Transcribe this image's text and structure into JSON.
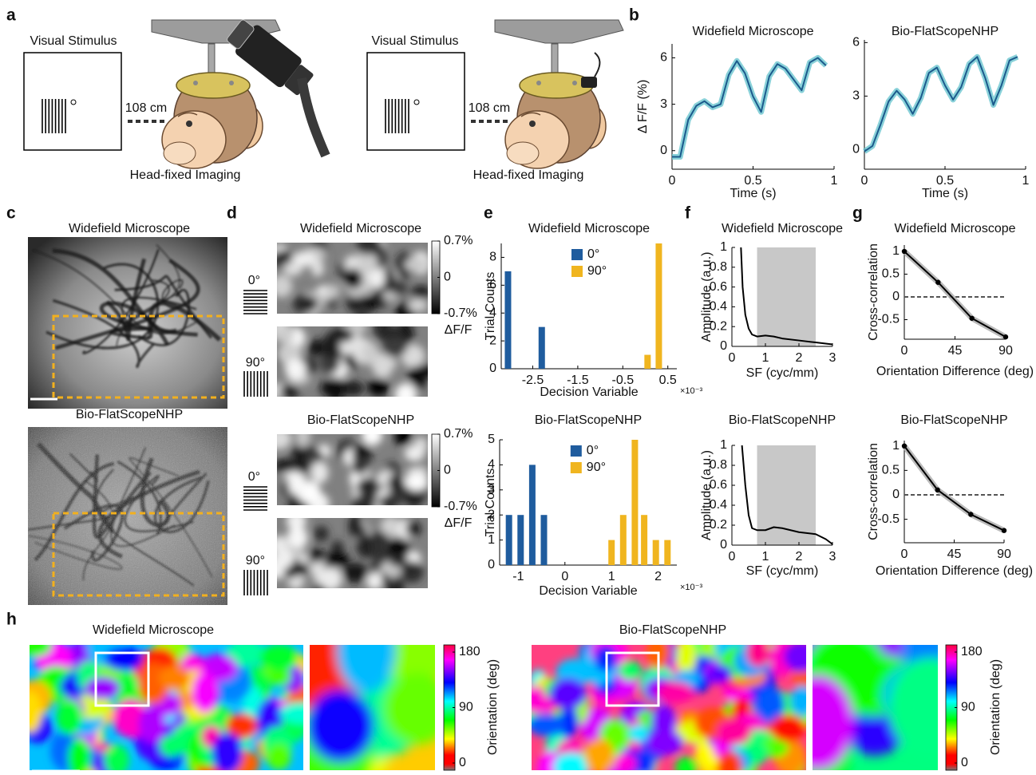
{
  "panel_labels": [
    "a",
    "b",
    "c",
    "d",
    "e",
    "f",
    "g",
    "h"
  ],
  "setup": [
    {
      "stimulus": "Visual Stimulus",
      "distance": "108 cm",
      "caption": "Head-fixed Imaging"
    },
    {
      "stimulus": "Visual Stimulus",
      "distance": "108 cm",
      "caption": "Head-fixed Imaging"
    }
  ],
  "panel_c": {
    "titles": [
      "Widefield Microscope",
      "Bio-FlatScopeNHP"
    ]
  },
  "panel_d": {
    "titles": [
      "Widefield Microscope",
      "Bio-FlatScopeNHP"
    ],
    "orientations": [
      "0°",
      "90°"
    ],
    "colorbar": {
      "ticks": [
        {
          "value": 0.7,
          "label": "0.7%"
        },
        0,
        {
          "value": -0.7,
          "label": "-0.7%"
        }
      ],
      "label": "ΔF/F"
    }
  },
  "panel_h": {
    "titles": [
      "Widefield Microscope",
      "Bio-FlatScopeNHP"
    ],
    "colorbar": {
      "ticks": [
        0,
        90,
        180
      ],
      "label": "Orientation (deg)"
    }
  },
  "chart_data": [
    {
      "type": "line",
      "title": "Widefield Microscope",
      "xlabel": "Time (s)",
      "ylabel": "Δ F/F (%)",
      "xlim": [
        0,
        1
      ],
      "ylim": [
        -1.2,
        6.9
      ],
      "xticks": [
        0,
        0.5,
        1
      ],
      "yticks": [
        0,
        3,
        6
      ],
      "band_color": "#6cc6cf",
      "series": [
        {
          "color": "#1b5a8c",
          "x": [
            0,
            0.05,
            0.1,
            0.15,
            0.2,
            0.25,
            0.3,
            0.35,
            0.4,
            0.45,
            0.5,
            0.55,
            0.6,
            0.65,
            0.7,
            0.75,
            0.8,
            0.85,
            0.9,
            0.95
          ],
          "values": [
            -0.4,
            -0.4,
            2.0,
            2.9,
            3.2,
            2.8,
            3.0,
            4.9,
            5.8,
            5.0,
            3.5,
            2.5,
            4.8,
            5.6,
            5.3,
            4.6,
            3.9,
            5.7,
            6.0,
            5.5
          ]
        }
      ]
    },
    {
      "type": "line",
      "title": "Bio-FlatScopeNHP",
      "xlabel": "Time (s)",
      "xlim": [
        0,
        1
      ],
      "ylim": [
        -1.1,
        6.15
      ],
      "xticks": [
        0,
        0.5,
        1
      ],
      "yticks": [
        0,
        3,
        6
      ],
      "band_color": "#6cc6cf",
      "series": [
        {
          "color": "#1b5a8c",
          "x": [
            0,
            0.05,
            0.1,
            0.15,
            0.2,
            0.25,
            0.3,
            0.35,
            0.4,
            0.45,
            0.5,
            0.55,
            0.6,
            0.65,
            0.7,
            0.75,
            0.8,
            0.85,
            0.9,
            0.95
          ],
          "values": [
            -0.1,
            0.2,
            1.4,
            2.7,
            3.3,
            2.8,
            2.0,
            2.9,
            4.3,
            4.6,
            3.6,
            2.8,
            3.5,
            4.8,
            5.2,
            4.0,
            2.5,
            3.6,
            5.0,
            5.2
          ]
        }
      ]
    },
    {
      "type": "bar",
      "title": "Widefield Microscope",
      "xlabel": "Decision Variable",
      "axis_exponent": "×10⁻³",
      "ylabel": "Trial Counts",
      "xlim": [
        -3.2,
        0.7
      ],
      "ylim": [
        0,
        9
      ],
      "xticks": [
        -2.5,
        -1.5,
        -0.5,
        0.5
      ],
      "yticks": [
        0,
        2,
        4,
        6,
        8
      ],
      "legend": "upper center",
      "series": [
        {
          "name": "0°",
          "color": "#1f5c9e",
          "x": [
            -3.05,
            -2.3
          ],
          "values": [
            7,
            3
          ]
        },
        {
          "name": "90°",
          "color": "#f0b51f",
          "x": [
            0.05,
            0.3
          ],
          "values": [
            1,
            9
          ]
        }
      ]
    },
    {
      "type": "bar",
      "title": "Bio-FlatScopeNHP",
      "xlabel": "Decision Variable",
      "axis_exponent": "×10⁻³",
      "ylabel": "Trial Counts",
      "xlim": [
        -1.4,
        2.4
      ],
      "ylim": [
        0,
        5
      ],
      "xticks": [
        -1,
        0,
        1,
        2
      ],
      "yticks": [
        0,
        1,
        2,
        3,
        4,
        5
      ],
      "legend": "upper center",
      "series": [
        {
          "name": "0°",
          "color": "#1f5c9e",
          "x": [
            -1.2,
            -0.95,
            -0.7,
            -0.45
          ],
          "values": [
            2,
            2,
            4,
            2
          ]
        },
        {
          "name": "90°",
          "color": "#f0b51f",
          "x": [
            1.0,
            1.25,
            1.5,
            1.7,
            1.95,
            2.2
          ],
          "values": [
            1,
            2,
            5,
            2,
            1,
            1
          ]
        }
      ]
    },
    {
      "type": "line",
      "title": "Widefield Microscope",
      "xlabel": "SF (cyc/mm)",
      "ylabel": "Amplitude (a.u.)",
      "xlim": [
        0,
        3
      ],
      "ylim": [
        0,
        1
      ],
      "xticks": [
        0,
        1,
        2,
        3
      ],
      "yticks": [
        0,
        0.2,
        0.4,
        0.6,
        0.8,
        1
      ],
      "shaded_range": [
        0.75,
        2.5
      ],
      "series": [
        {
          "color": "#000000",
          "x": [
            0.27,
            0.32,
            0.4,
            0.5,
            0.6,
            0.75,
            1,
            1.25,
            1.5,
            2,
            2.5,
            3
          ],
          "values": [
            1,
            0.6,
            0.32,
            0.18,
            0.12,
            0.1,
            0.11,
            0.1,
            0.08,
            0.06,
            0.04,
            0.02
          ]
        }
      ]
    },
    {
      "type": "line",
      "title": "Bio-FlatScopeNHP",
      "xlabel": "SF (cyc/mm)",
      "ylabel": "Amplitude (a.u.)",
      "xlim": [
        0,
        3
      ],
      "ylim": [
        0,
        1
      ],
      "xticks": [
        0,
        1,
        2,
        3
      ],
      "yticks": [
        0,
        0.2,
        0.4,
        0.6,
        0.8,
        1
      ],
      "shaded_range": [
        0.75,
        2.5
      ],
      "series": [
        {
          "color": "#000000",
          "x": [
            0.3,
            0.4,
            0.5,
            0.6,
            0.75,
            1,
            1.25,
            1.5,
            2,
            2.5,
            2.8,
            3
          ],
          "values": [
            1,
            0.6,
            0.3,
            0.17,
            0.15,
            0.15,
            0.18,
            0.17,
            0.13,
            0.11,
            0.06,
            0.01
          ]
        }
      ]
    },
    {
      "type": "line",
      "title": "Widefield Microscope",
      "xlabel": "Orientation Difference (deg)",
      "ylabel": "Cross-correlation",
      "xlim": [
        0,
        90
      ],
      "ylim": [
        -0.93,
        1.14
      ],
      "xticks": [
        0,
        45,
        90
      ],
      "yticks": [
        -0.5,
        0,
        0.5,
        1
      ],
      "markers": true,
      "band_color": "#aaaaaa",
      "reference_line": 0,
      "series": [
        {
          "color": "#000000",
          "x": [
            0,
            30,
            60,
            90
          ],
          "values": [
            1,
            0.32,
            -0.47,
            -0.88
          ]
        }
      ]
    },
    {
      "type": "line",
      "title": "Bio-FlatScopeNHP",
      "xlabel": "Orientation Difference (deg)",
      "ylabel": "Cross-correlation",
      "xlim": [
        0,
        90
      ],
      "ylim": [
        -0.98,
        1.11
      ],
      "xticks": [
        0,
        45,
        90
      ],
      "yticks": [
        -0.5,
        0,
        0.5,
        1
      ],
      "markers": true,
      "band_color": "#aaaaaa",
      "reference_line": 0,
      "series": [
        {
          "color": "#000000",
          "x": [
            0,
            30,
            60,
            90
          ],
          "values": [
            1,
            0.1,
            -0.4,
            -0.73
          ]
        }
      ]
    }
  ]
}
